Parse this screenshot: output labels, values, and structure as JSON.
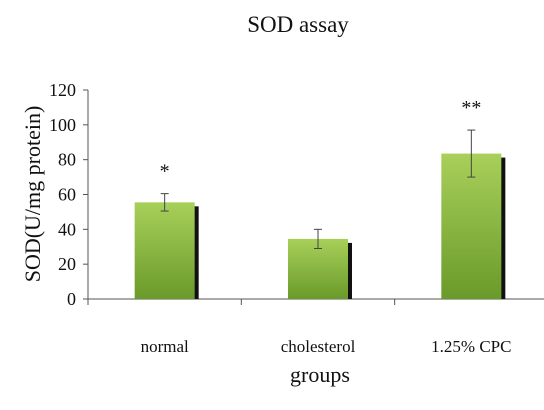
{
  "chart_data": {
    "type": "bar",
    "title": "SOD assay",
    "xlabel": "groups",
    "ylabel": "SOD(U/mg protein)",
    "ylim": [
      0,
      120
    ],
    "yticks": [
      0,
      20,
      40,
      60,
      80,
      100,
      120
    ],
    "categories": [
      "normal",
      "cholesterol",
      "1.25% CPC"
    ],
    "values": [
      55.5,
      34.5,
      83.5
    ],
    "errors": [
      5,
      5.5,
      13.5
    ],
    "annotations": [
      "*",
      "",
      "**"
    ],
    "grid": false,
    "bar_color_top": "#a8d05a",
    "bar_color_bottom": "#6a9a2a",
    "shadow_color": "#111111"
  }
}
